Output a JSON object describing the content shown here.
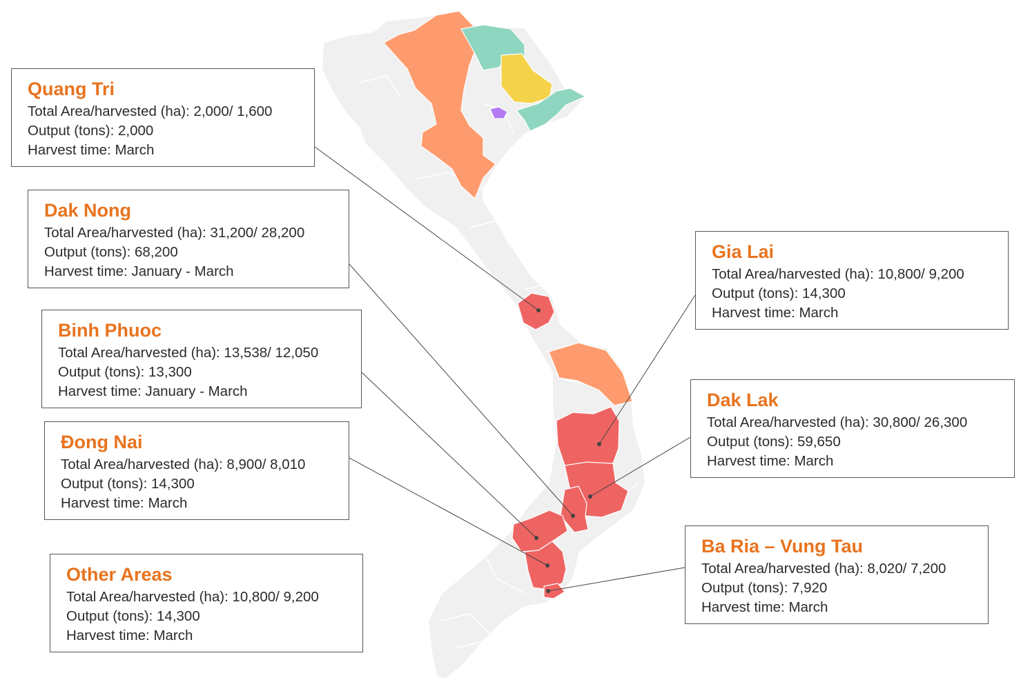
{
  "colors": {
    "title": "#e8731e",
    "text": "#2b2b2b",
    "box_border": "#555555",
    "land": "#f0f0f0",
    "region_red": "#ee6462",
    "region_orange": "#fe9b6e",
    "region_teal": "#8fd6c1",
    "region_yellow": "#f4d24a",
    "region_purple": "#b57bf2",
    "leader_line": "#444444"
  },
  "regions": [
    {
      "key": "quang_tri",
      "title": "Quang Tri",
      "area_line": "Total Area/harvested (ha): 2,000/ 1,600",
      "output_line": "Output (tons): 2,000",
      "harvest_line": "Harvest time: March"
    },
    {
      "key": "dak_nong",
      "title": "Dak Nong",
      "area_line": "Total Area/harvested (ha): 31,200/ 28,200",
      "output_line": "Output (tons): 68,200",
      "harvest_line": "Harvest time: January - March"
    },
    {
      "key": "binh_phuoc",
      "title": "Binh Phuoc",
      "area_line": "Total Area/harvested (ha): 13,538/ 12,050",
      "output_line": "Output (tons): 13,300",
      "harvest_line": "Harvest time: January - March"
    },
    {
      "key": "dong_nai",
      "title": "Đong Nai",
      "area_line": "Total Area/harvested (ha): 8,900/ 8,010",
      "output_line": "Output (tons): 14,300",
      "harvest_line": "Harvest time: March"
    },
    {
      "key": "other_areas",
      "title": "Other Areas",
      "area_line": "Total Area/harvested (ha): 10,800/ 9,200",
      "output_line": "Output (tons): 14,300",
      "harvest_line": "Harvest time: March"
    },
    {
      "key": "gia_lai",
      "title": "Gia Lai",
      "area_line": "Total Area/harvested (ha): 10,800/ 9,200",
      "output_line": "Output (tons): 14,300",
      "harvest_line": "Harvest time: March"
    },
    {
      "key": "dak_lak",
      "title": "Dak Lak",
      "area_line": "Total Area/harvested (ha): 30,800/ 26,300",
      "output_line": "Output (tons): 59,650",
      "harvest_line": "Harvest time: March"
    },
    {
      "key": "ba_ria",
      "title": "Ba Ria – Vung Tau",
      "area_line": "Total Area/harvested (ha): 8,020/ 7,200",
      "output_line": "Output (tons): 7,920",
      "harvest_line": "Harvest time: March"
    }
  ]
}
